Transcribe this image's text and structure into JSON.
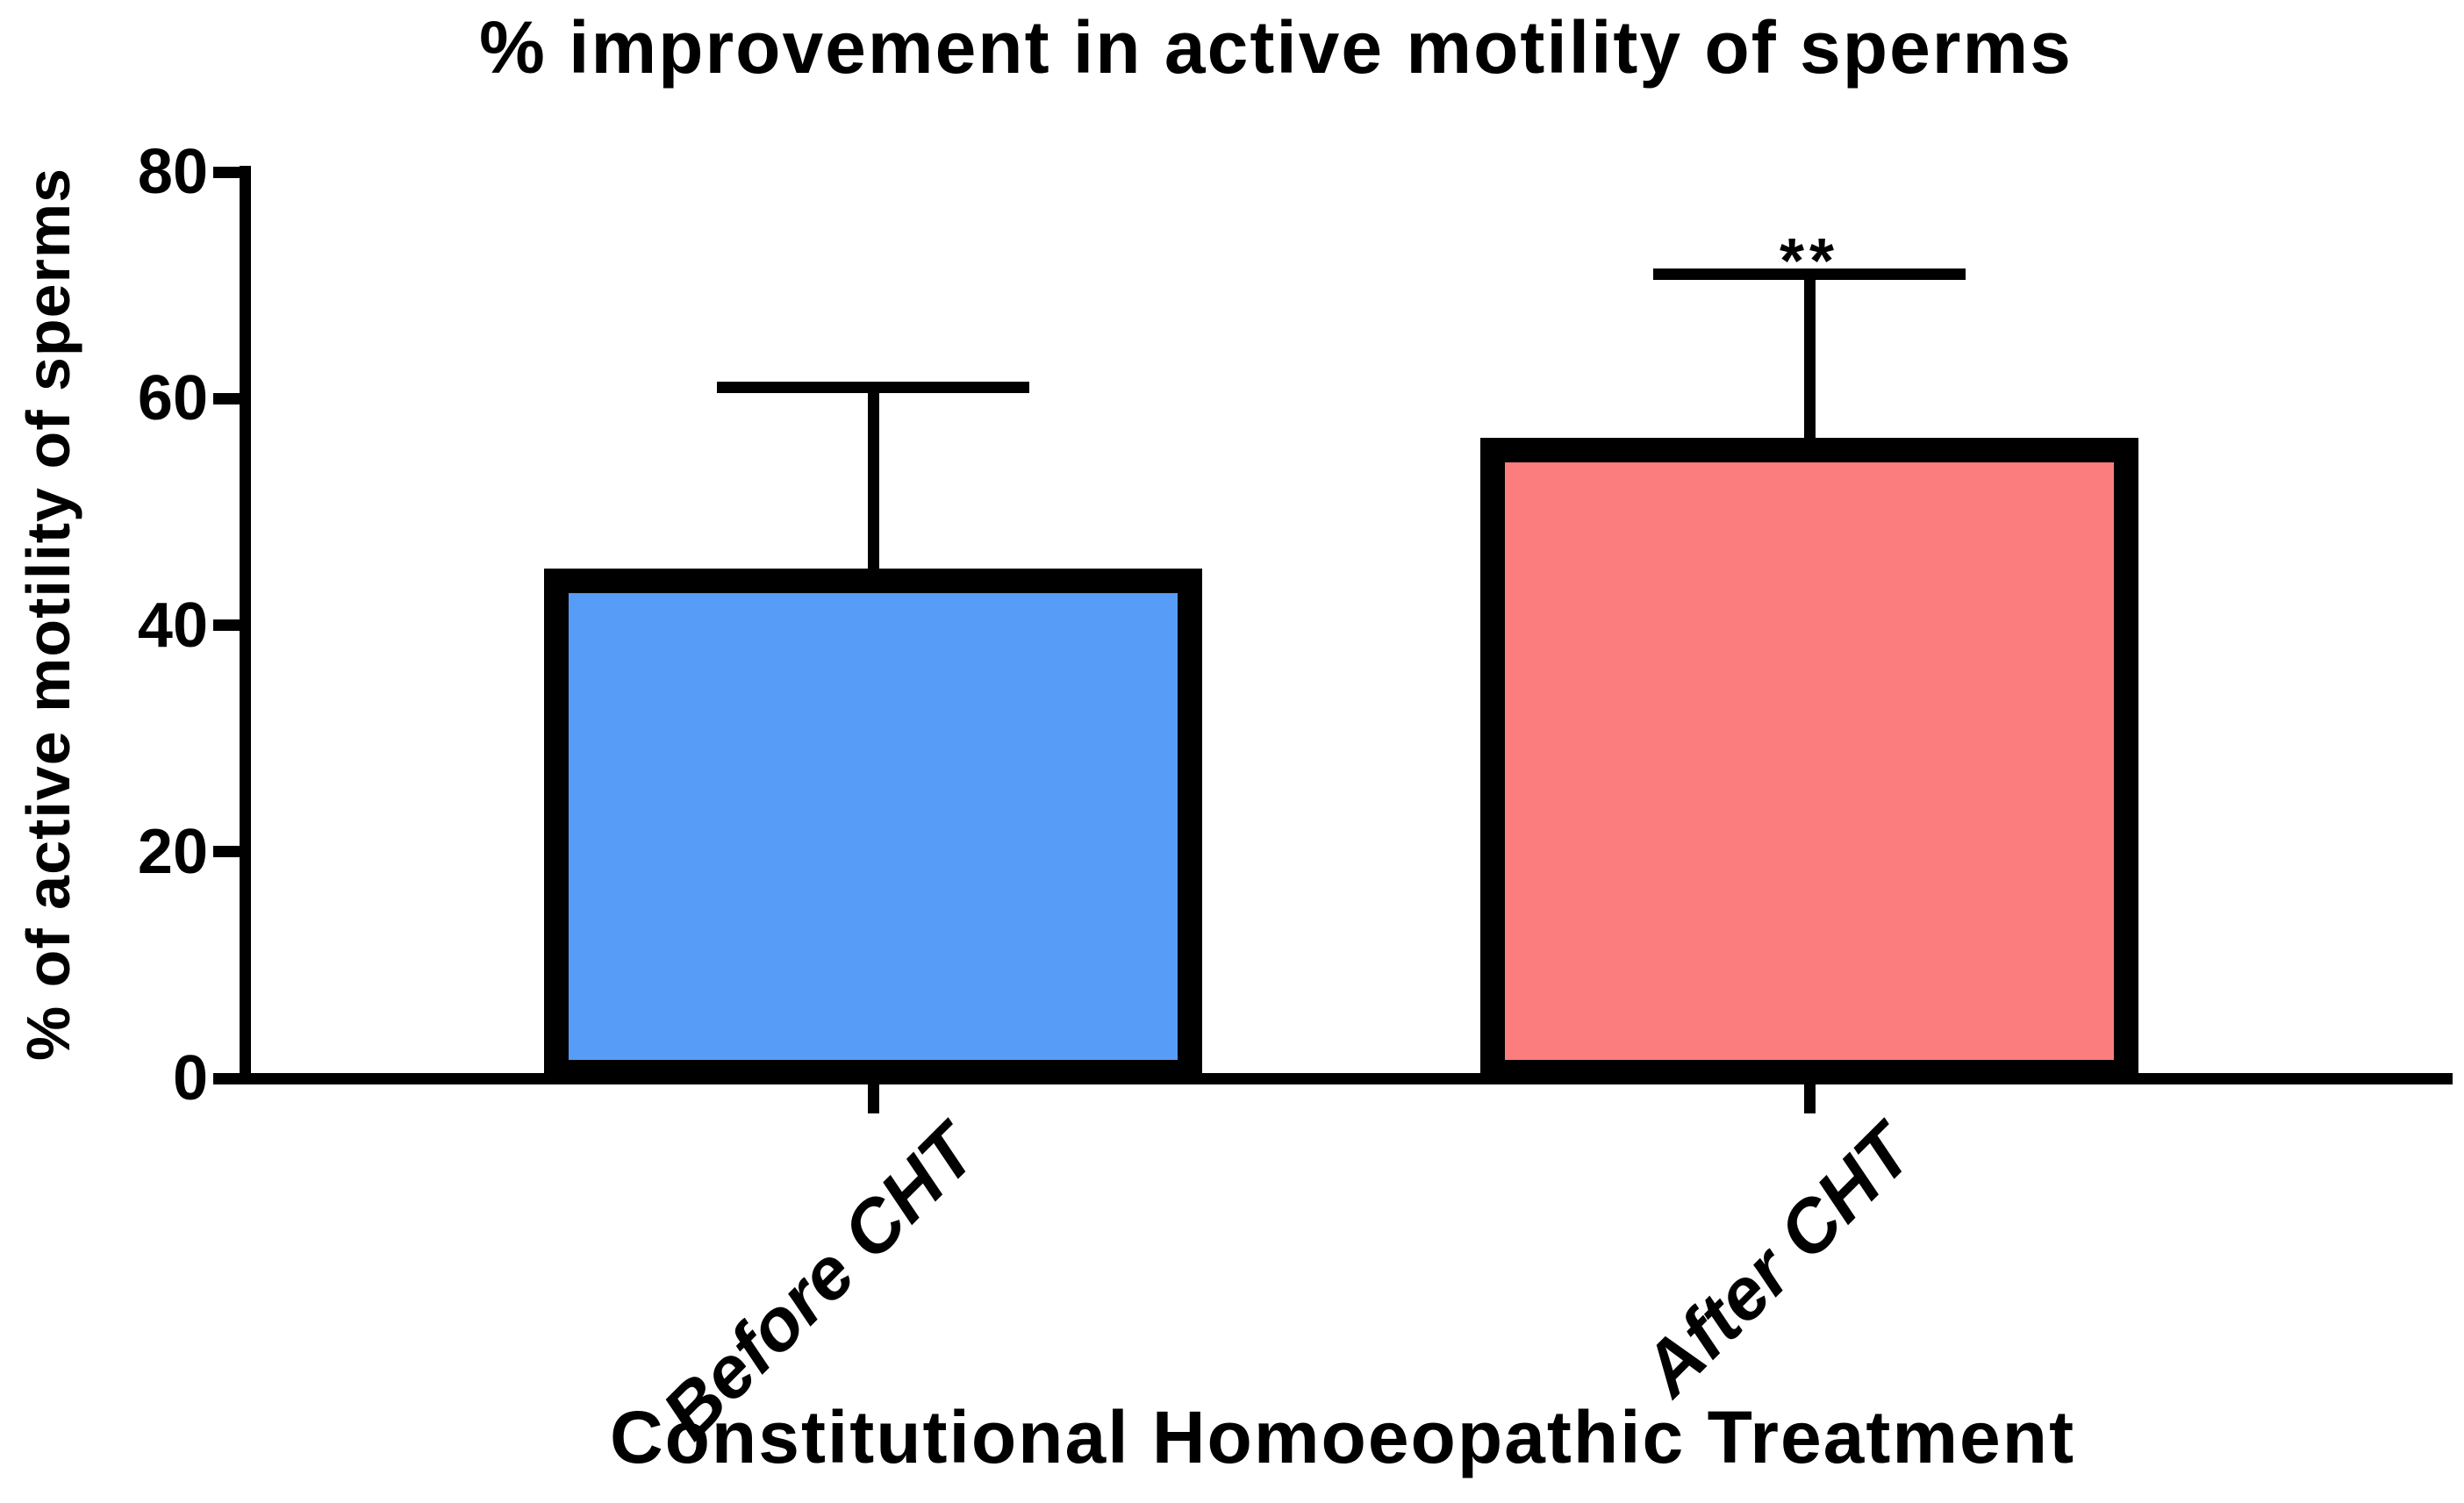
{
  "chart_data": {
    "type": "bar",
    "title": "% improvement in active motility of sperms",
    "xlabel": "Constitutional Homoeopathic Treatment",
    "ylabel": "% of active motility of sperms",
    "categories": [
      "Before CHT",
      "After CHT"
    ],
    "series": [
      {
        "name": "% of active motility of sperms",
        "values": [
          45,
          56.5
        ],
        "errors_upper": [
          16,
          14.5
        ]
      }
    ],
    "error_bar_tops": [
      61,
      71
    ],
    "ylim": [
      0,
      80
    ],
    "yticks": [
      0,
      20,
      40,
      60,
      80
    ],
    "grid": false,
    "legend": null,
    "bar_colors": [
      "#579CF6",
      "#FB7D7D"
    ],
    "bar_border_color": "#000000",
    "axis_color": "#000000",
    "background_color": "#FFFFFF",
    "annotations": [
      {
        "text": "**",
        "category": "After CHT"
      }
    ]
  }
}
